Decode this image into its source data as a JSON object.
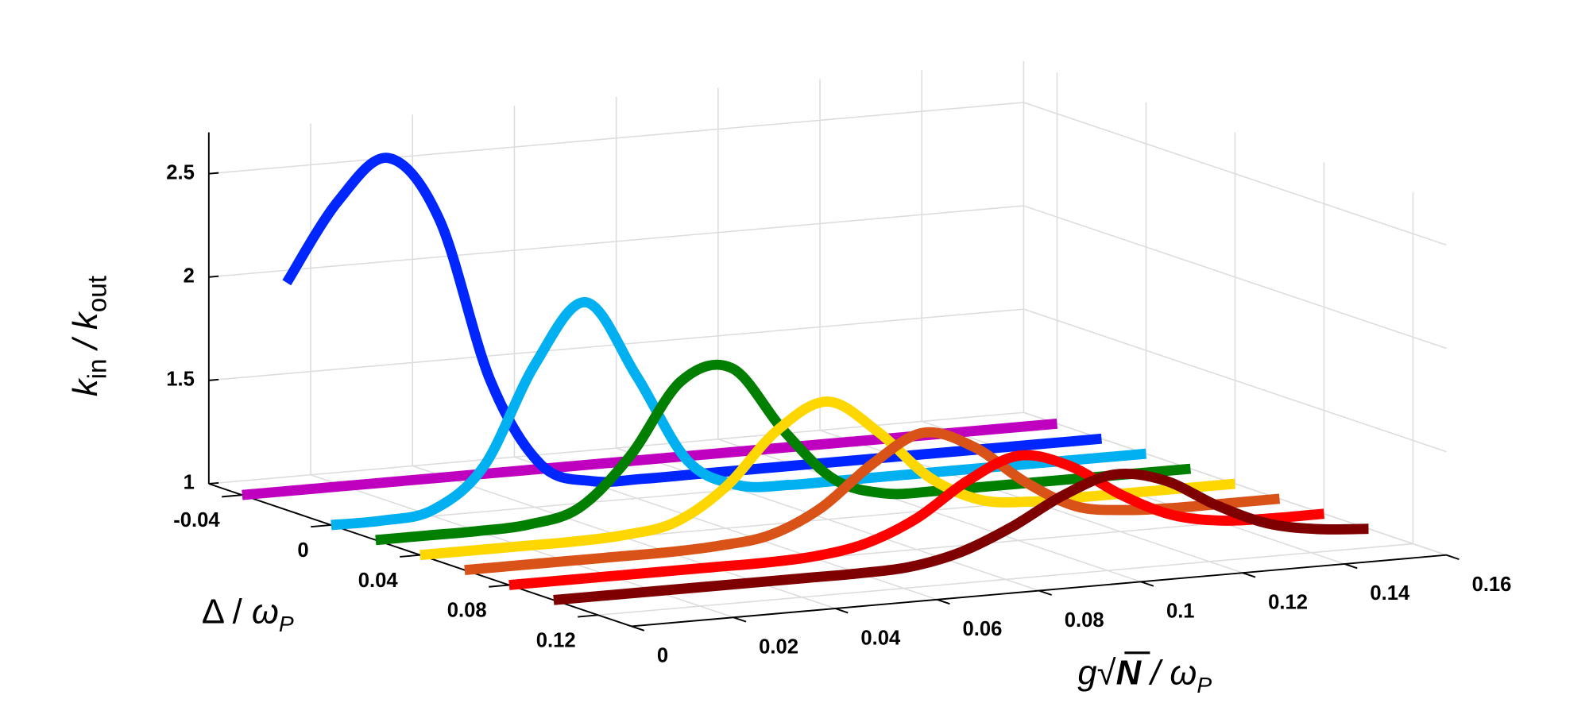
{
  "chart_data": {
    "type": "ribbon3d",
    "xlabel": [
      "g",
      "√",
      "N",
      " / ",
      "ω",
      "P"
    ],
    "ylabel": [
      "Δ / ",
      "ω",
      "P"
    ],
    "zlabel": [
      "k",
      "in",
      " / ",
      "k",
      "out"
    ],
    "x": [
      0,
      0.01,
      0.02,
      0.03,
      0.04,
      0.05,
      0.06,
      0.07,
      0.08,
      0.09,
      0.1,
      0.11,
      0.12,
      0.13,
      0.14,
      0.15,
      0.16
    ],
    "xlim": [
      0,
      0.16
    ],
    "xticks": [
      0,
      0.02,
      0.04,
      0.06,
      0.08,
      0.1,
      0.12,
      0.14,
      0.16
    ],
    "ylim": [
      -0.055,
      0.135
    ],
    "yticks": [
      -0.04,
      0,
      0.04,
      0.08,
      0.12
    ],
    "zlim": [
      1,
      2.7
    ],
    "zticks": [
      1,
      1.5,
      2,
      2.5
    ],
    "grid": true,
    "series": [
      {
        "color": "#bf00bf",
        "y": -0.04,
        "values": [
          1,
          1,
          1,
          1,
          1,
          1,
          1,
          1,
          1,
          1,
          1,
          1,
          1,
          1,
          1,
          1,
          1
        ]
      },
      {
        "color": "#0026ff",
        "y": -0.02,
        "values": [
          2.1,
          2.47,
          2.66,
          2.34,
          1.54,
          1.11,
          1.01,
          1,
          1,
          1,
          1,
          1,
          1,
          1,
          1,
          1,
          1
        ]
      },
      {
        "color": "#00b0f0",
        "y": 0,
        "values": [
          1,
          1,
          1.03,
          1.22,
          1.69,
          1.97,
          1.59,
          1.16,
          1.02,
          1,
          1,
          1,
          1,
          1,
          1,
          1,
          1
        ]
      },
      {
        "color": "#007f00",
        "y": 0.02,
        "values": [
          1,
          1,
          1,
          1.01,
          1.07,
          1.3,
          1.64,
          1.68,
          1.36,
          1.1,
          1.01,
          1,
          1,
          1,
          1,
          1,
          1
        ]
      },
      {
        "color": "#ffd700",
        "y": 0.04,
        "values": [
          1,
          1,
          1,
          1,
          1.01,
          1.05,
          1.2,
          1.45,
          1.57,
          1.4,
          1.16,
          1.03,
          1,
          1,
          1,
          1,
          1
        ]
      },
      {
        "color": "#d95319",
        "y": 0.06,
        "values": [
          1,
          1,
          1,
          1,
          1,
          1.01,
          1.04,
          1.15,
          1.34,
          1.47,
          1.38,
          1.19,
          1.05,
          1.01,
          1,
          1,
          1
        ]
      },
      {
        "color": "#ff0000",
        "y": 0.08,
        "values": [
          1,
          1,
          1,
          1,
          1,
          1,
          1.01,
          1.05,
          1.15,
          1.31,
          1.41,
          1.34,
          1.18,
          1.06,
          1.01,
          1,
          1
        ]
      },
      {
        "color": "#7f0000",
        "y": 0.1,
        "values": [
          1,
          1,
          1,
          1,
          1,
          1,
          1,
          1.01,
          1.06,
          1.16,
          1.29,
          1.37,
          1.32,
          1.18,
          1.07,
          1.02,
          1
        ]
      }
    ]
  }
}
